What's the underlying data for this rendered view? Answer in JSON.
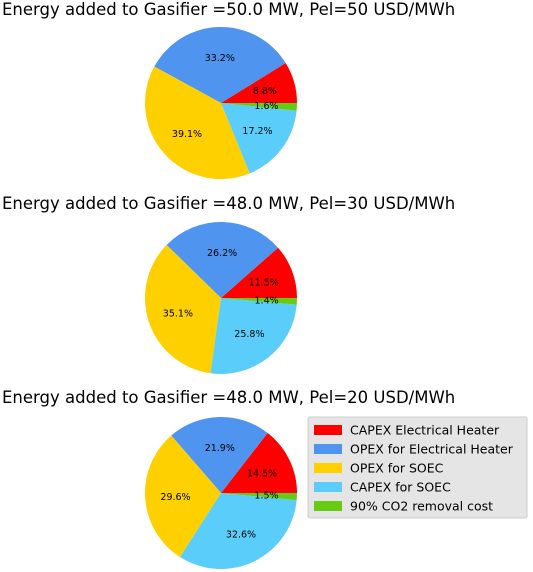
{
  "colors": {
    "CAPEX Electrical Heater": "#ff0000",
    "OPEX for Electrical Heater": "#4f94ef",
    "OPEX for SOEC": "#ffd000",
    "CAPEX for SOEC": "#5bcdfa",
    "90% CO2 removal cost": "#66cc11"
  },
  "legend": {
    "entries": [
      "CAPEX Electrical Heater",
      "OPEX for Electrical Heater",
      "OPEX for SOEC",
      "CAPEX for SOEC",
      "90% CO2 removal cost"
    ],
    "placement": "right of bottom chart"
  },
  "chart_data": [
    {
      "type": "pie",
      "title": "Energy added to Gasifier =50.0 MW, Pel=50 USD/MWh",
      "labels": [
        "CAPEX Electrical Heater",
        "OPEX for Electrical Heater",
        "OPEX for SOEC",
        "CAPEX for SOEC",
        "90% CO2 removal cost"
      ],
      "values": [
        8.8,
        33.2,
        39.1,
        17.2,
        1.6
      ],
      "value_labels": [
        "8.8%",
        "33.2%",
        "39.1%",
        "17.2%",
        "1.6%"
      ]
    },
    {
      "type": "pie",
      "title": "Energy added to Gasifier =48.0 MW, Pel=30 USD/MWh",
      "labels": [
        "CAPEX Electrical Heater",
        "OPEX for Electrical Heater",
        "OPEX for SOEC",
        "CAPEX for SOEC",
        "90% CO2 removal cost"
      ],
      "values": [
        11.5,
        26.2,
        35.1,
        25.8,
        1.4
      ],
      "value_labels": [
        "11.5%",
        "26.2%",
        "35.1%",
        "25.8%",
        "1.4%"
      ]
    },
    {
      "type": "pie",
      "title": "Energy added to Gasifier =48.0 MW, Pel=20 USD/MWh",
      "labels": [
        "CAPEX Electrical Heater",
        "OPEX for Electrical Heater",
        "OPEX for SOEC",
        "CAPEX for SOEC",
        "90% CO2 removal cost"
      ],
      "values": [
        14.5,
        21.9,
        29.6,
        32.6,
        1.5
      ],
      "value_labels": [
        "14.5%",
        "21.9%",
        "29.6%",
        "32.6%",
        "1.5%"
      ]
    }
  ]
}
